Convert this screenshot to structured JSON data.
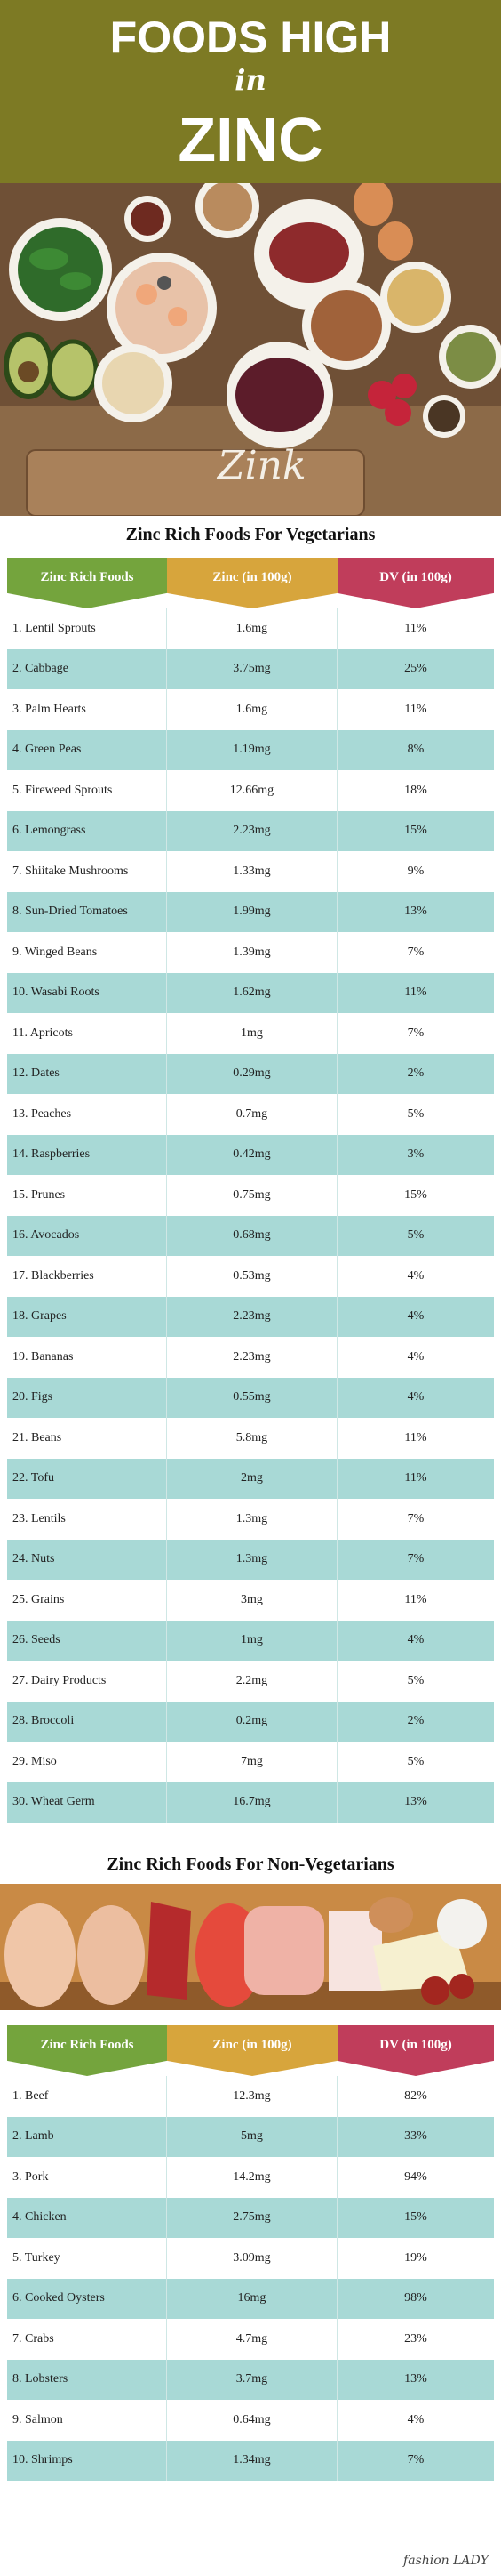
{
  "header": {
    "line1": "FOODS HIGH",
    "line2": "in",
    "line3": "ZINC"
  },
  "hero_sign": "Zink",
  "vegetarian": {
    "title": "Zinc Rich Foods For Vegetarians",
    "headers": [
      "Zinc Rich Foods",
      "Zinc (in 100g)",
      "DV (in 100g)"
    ],
    "rows": [
      [
        "1. Lentil Sprouts",
        "1.6mg",
        "11%"
      ],
      [
        "2. Cabbage",
        "3.75mg",
        "25%"
      ],
      [
        "3. Palm Hearts",
        "1.6mg",
        "11%"
      ],
      [
        "4. Green Peas",
        "1.19mg",
        "8%"
      ],
      [
        "5. Fireweed Sprouts",
        "12.66mg",
        "18%"
      ],
      [
        "6. Lemongrass",
        "2.23mg",
        "15%"
      ],
      [
        "7. Shiitake Mushrooms",
        "1.33mg",
        "9%"
      ],
      [
        "8. Sun-Dried Tomatoes",
        "1.99mg",
        "13%"
      ],
      [
        "9. Winged Beans",
        "1.39mg",
        "7%"
      ],
      [
        "10. Wasabi Roots",
        "1.62mg",
        "11%"
      ],
      [
        "11. Apricots",
        "1mg",
        "7%"
      ],
      [
        "12. Dates",
        "0.29mg",
        "2%"
      ],
      [
        "13. Peaches",
        "0.7mg",
        "5%"
      ],
      [
        "14. Raspberries",
        "0.42mg",
        "3%"
      ],
      [
        "15. Prunes",
        "0.75mg",
        "15%"
      ],
      [
        "16. Avocados",
        "0.68mg",
        "5%"
      ],
      [
        "17. Blackberries",
        "0.53mg",
        "4%"
      ],
      [
        "18. Grapes",
        "2.23mg",
        "4%"
      ],
      [
        "19. Bananas",
        "2.23mg",
        "4%"
      ],
      [
        "20. Figs",
        "0.55mg",
        "4%"
      ],
      [
        "21. Beans",
        "5.8mg",
        "11%"
      ],
      [
        "22. Tofu",
        "2mg",
        "11%"
      ],
      [
        "23. Lentils",
        "1.3mg",
        "7%"
      ],
      [
        "24. Nuts",
        "1.3mg",
        "7%"
      ],
      [
        "25. Grains",
        "3mg",
        "11%"
      ],
      [
        "26. Seeds",
        "1mg",
        "4%"
      ],
      [
        "27. Dairy Products",
        "2.2mg",
        "5%"
      ],
      [
        "28. Broccoli",
        "0.2mg",
        "2%"
      ],
      [
        "29. Miso",
        "7mg",
        "5%"
      ],
      [
        "30. Wheat Germ",
        "16.7mg",
        "13%"
      ]
    ]
  },
  "nonveg": {
    "title": "Zinc Rich Foods For Non-Vegetarians",
    "headers": [
      "Zinc Rich Foods",
      "Zinc (in 100g)",
      "DV (in 100g)"
    ],
    "rows": [
      [
        "1. Beef",
        "12.3mg",
        "82%"
      ],
      [
        "2. Lamb",
        "5mg",
        "33%"
      ],
      [
        "3. Pork",
        "14.2mg",
        "94%"
      ],
      [
        "4. Chicken",
        "2.75mg",
        "15%"
      ],
      [
        "5. Turkey",
        "3.09mg",
        "19%"
      ],
      [
        "6. Cooked Oysters",
        "16mg",
        "98%"
      ],
      [
        "7. Crabs",
        "4.7mg",
        "23%"
      ],
      [
        "8. Lobsters",
        "3.7mg",
        "13%"
      ],
      [
        "9. Salmon",
        "0.64mg",
        "4%"
      ],
      [
        "10. Shrimps",
        "1.34mg",
        "7%"
      ]
    ]
  },
  "footer": {
    "logo": "fashion LADY"
  },
  "colors": {
    "header_bg": "#7d7a24",
    "col1": "#74a43d",
    "col2": "#d7a53c",
    "col3": "#c03d5b",
    "row_alt": "#a8d9d6"
  }
}
